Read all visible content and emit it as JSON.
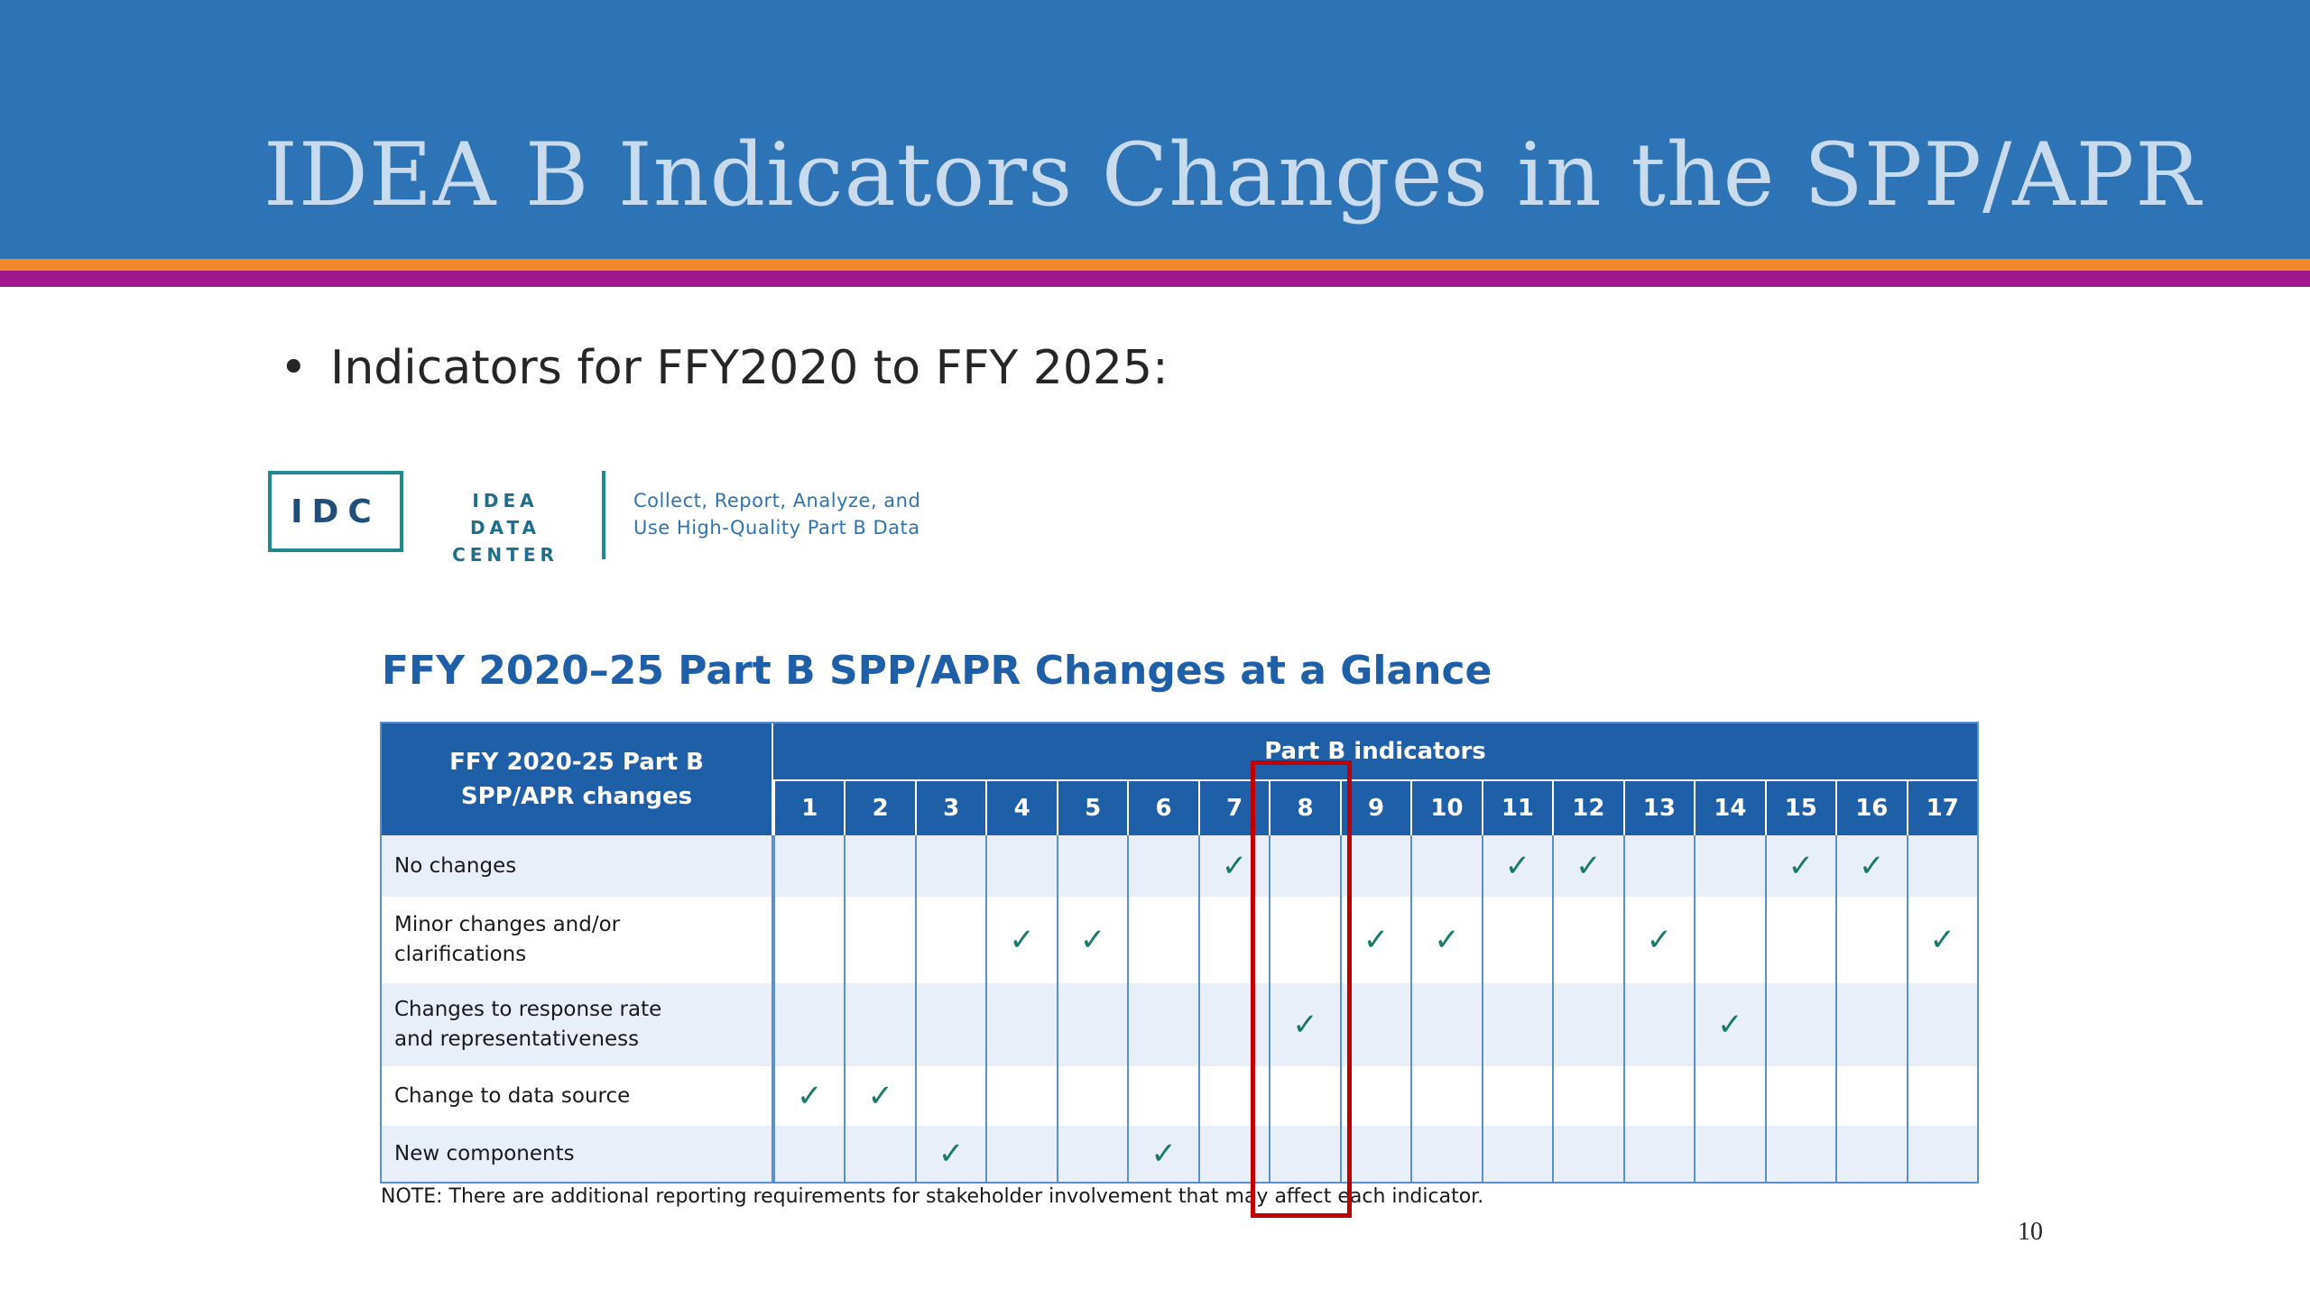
{
  "slide": {
    "title": "IDEA B Indicators Changes in the SPP/APR",
    "bullet": "Indicators for FFY2020 to FFY 2025:",
    "page_number": "10"
  },
  "logo": {
    "abbr": "IDC",
    "name_line1": "IDEA DATA",
    "name_line2": "CENTER",
    "tagline_line1": "Collect, Report, Analyze, and",
    "tagline_line2": "Use High-Quality Part B Data"
  },
  "table": {
    "title": "FFY 2020–25 Part B SPP/APR Changes at a Glance",
    "corner_header_line1": "FFY 2020-25  Part B",
    "corner_header_line2": "SPP/APR changes",
    "group_header": "Part B indicators",
    "indicators": [
      "1",
      "2",
      "3",
      "4",
      "5",
      "6",
      "7",
      "8",
      "9",
      "10",
      "11",
      "12",
      "13",
      "14",
      "15",
      "16",
      "17"
    ],
    "check_symbol": "✓",
    "rows": [
      {
        "label": "No changes",
        "checked": [
          "7",
          "11",
          "12",
          "15",
          "16"
        ]
      },
      {
        "label": "Minor changes and/or clarifications",
        "checked": [
          "4",
          "5",
          "9",
          "10",
          "13",
          "17"
        ]
      },
      {
        "label": "Changes to response rate and representativeness",
        "checked": [
          "8",
          "14"
        ]
      },
      {
        "label": "Change to data source",
        "checked": [
          "1",
          "2"
        ]
      },
      {
        "label": "New components",
        "checked": [
          "3",
          "6"
        ]
      }
    ],
    "highlighted_indicator": "8",
    "note": "NOTE: There are additional reporting requirements for stakeholder involvement that may affect each indicator."
  },
  "colors": {
    "header_blue": "#2e74b5",
    "table_blue": "#1f5fa8",
    "stripe_orange": "#ef8a2a",
    "stripe_purple": "#a0188c",
    "highlight_red": "#c00000",
    "check_teal": "#1a7a6a"
  }
}
